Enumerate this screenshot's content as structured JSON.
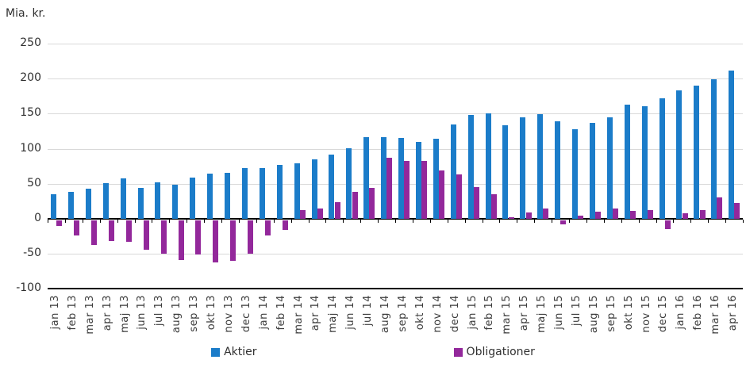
{
  "chart_data": {
    "type": "bar",
    "title": "Mia. kr.",
    "categories": [
      "jan 13",
      "feb 13",
      "mar 13",
      "apr 13",
      "maj 13",
      "jun 13",
      "jul 13",
      "aug 13",
      "sep 13",
      "okt 13",
      "nov 13",
      "dec 13",
      "jan 14",
      "feb 14",
      "mar 14",
      "apr 14",
      "maj 14",
      "jun 14",
      "jul 14",
      "aug 14",
      "sep 14",
      "okt 14",
      "nov 14",
      "dec 14",
      "jan 15",
      "feb 15",
      "mar 15",
      "apr 15",
      "maj 15",
      "jun 15",
      "jul 15",
      "aug 15",
      "sep 15",
      "okt 15",
      "nov 15",
      "dec 15",
      "jan 16",
      "feb 16",
      "mar 16",
      "apr 16"
    ],
    "series": [
      {
        "name": "Aktier",
        "color": "#1b7cc9",
        "values": [
          35,
          38,
          43,
          51,
          58,
          44,
          52,
          49,
          59,
          65,
          66,
          72,
          72,
          77,
          79,
          85,
          92,
          101,
          116,
          116,
          115,
          110,
          114,
          135,
          148,
          151,
          133,
          145,
          149,
          139,
          128,
          137,
          145,
          163,
          161,
          172,
          183,
          190,
          199,
          212
        ]
      },
      {
        "name": "Obligationer",
        "color": "#93289b",
        "values": [
          -8,
          -22,
          -35,
          -29,
          -30,
          -42,
          -48,
          -56,
          -49,
          -60,
          -58,
          -48,
          -21,
          -14,
          13,
          15,
          24,
          39,
          44,
          87,
          83,
          83,
          69,
          63,
          45,
          35,
          2,
          9,
          15,
          -6,
          5,
          10,
          15,
          11,
          12,
          -13,
          8,
          13,
          30,
          23
        ]
      }
    ],
    "ylabel": "Mia. kr.",
    "xlabel": "",
    "ylim": [
      -100,
      250
    ],
    "yticks": [
      250,
      200,
      150,
      100,
      50,
      0,
      -50,
      -100
    ],
    "grid": true,
    "legend_position": "bottom",
    "colors": {
      "grid": "#d9d9d9",
      "axis": "#000000",
      "text": "#303030"
    }
  }
}
